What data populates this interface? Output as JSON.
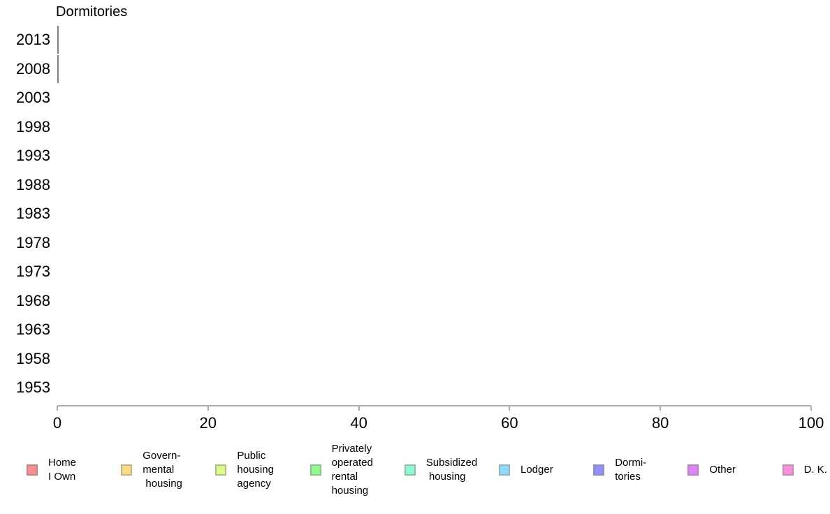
{
  "chart_data": {
    "type": "bar",
    "orientation": "horizontal",
    "title": "Dormitories",
    "categories": [
      "2013",
      "2008",
      "2003",
      "1998",
      "1993",
      "1988",
      "1983",
      "1978",
      "1973",
      "1968",
      "1963",
      "1958",
      "1953"
    ],
    "values": [
      0,
      0,
      null,
      null,
      null,
      null,
      null,
      null,
      null,
      null,
      null,
      null,
      null
    ],
    "xlabel": "",
    "ylabel": "",
    "xlim": [
      0,
      100
    ],
    "x_ticks": [
      0,
      20,
      40,
      60,
      80,
      100
    ],
    "grid": false,
    "legend_position": "bottom",
    "bar_fill": "#9090FA",
    "bar_outline": "#808080",
    "axis_color": "#AAAAAA",
    "legend": [
      {
        "label_lines": [
          "Home",
          "I Own"
        ],
        "fill": "#F98E8E",
        "border": "#BC8787"
      },
      {
        "label_lines": [
          "Govern-",
          "mental",
          " housing"
        ],
        "fill": "#FBDC85",
        "border": "#BDB682"
      },
      {
        "label_lines": [
          "Public",
          "housing",
          "agency"
        ],
        "fill": "#DAFA8D",
        "border": "#ADBD86"
      },
      {
        "label_lines": [
          "Privately",
          "operated",
          "rental",
          "housing"
        ],
        "fill": "#90FA90",
        "border": "#90BD90"
      },
      {
        "label_lines": [
          "Subsidized",
          " housing"
        ],
        "fill": "#8FFACF",
        "border": "#8FBDA7"
      },
      {
        "label_lines": [
          "Lodger"
        ],
        "fill": "#8FDCFA",
        "border": "#8FB6BD"
      },
      {
        "label_lines": [
          "Dormi-",
          "tories"
        ],
        "fill": "#9090FA",
        "border": "#9090BD"
      },
      {
        "label_lines": [
          "Other"
        ],
        "fill": "#DC85FA",
        "border": "#B682BD"
      },
      {
        "label_lines": [
          "D. K."
        ],
        "fill": "#FA90DC",
        "border": "#BD90AE"
      }
    ]
  }
}
